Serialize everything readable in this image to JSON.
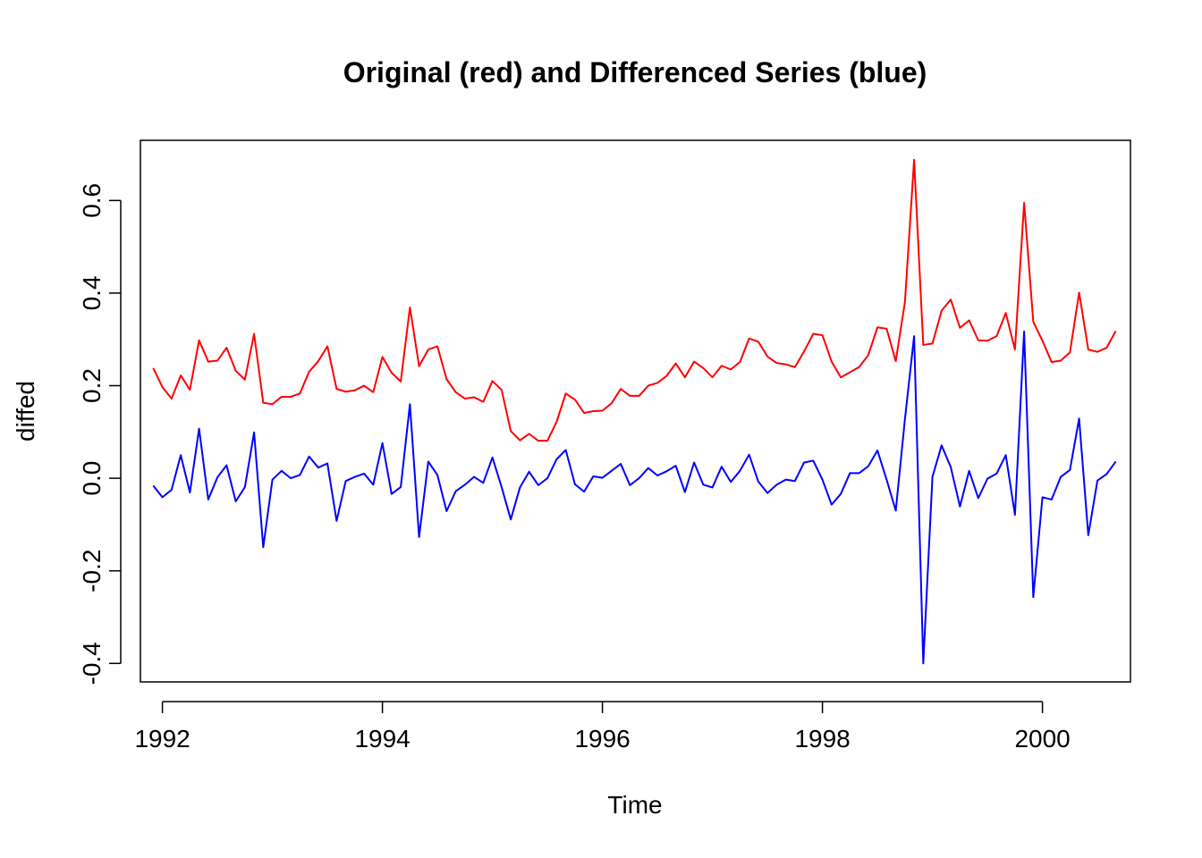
{
  "chart_data": {
    "type": "line",
    "title": "Original (red) and Differenced Series (blue)",
    "xlabel": "Time",
    "ylabel": "diffed",
    "xlim": [
      1991.8,
      2000.8
    ],
    "ylim": [
      -0.44,
      0.73
    ],
    "x_ticks": [
      1992,
      1994,
      1996,
      1998,
      2000
    ],
    "x_tick_labels": [
      "1992",
      "1994",
      "1996",
      "1998",
      "2000"
    ],
    "y_ticks": [
      -0.4,
      -0.2,
      0.0,
      0.2,
      0.4,
      0.6
    ],
    "y_tick_labels": [
      "-0.4",
      "-0.2",
      "0.0",
      "0.2",
      "0.4",
      "0.6"
    ],
    "grid": false,
    "legend": "none",
    "x_start": 1991.9167,
    "x_step": 0.0833333,
    "series": [
      {
        "color": "#ff0000",
        "values": [
          0.238,
          0.197,
          0.172,
          0.222,
          0.191,
          0.298,
          0.252,
          0.254,
          0.282,
          0.232,
          0.213,
          0.312,
          0.163,
          0.16,
          0.176,
          0.176,
          0.183,
          0.23,
          0.253,
          0.285,
          0.193,
          0.187,
          0.19,
          0.2,
          0.186,
          0.262,
          0.228,
          0.209,
          0.369,
          0.242,
          0.278,
          0.285,
          0.214,
          0.186,
          0.172,
          0.175,
          0.165,
          0.21,
          0.191,
          0.102,
          0.082,
          0.096,
          0.081,
          0.081,
          0.122,
          0.183,
          0.17,
          0.141,
          0.145,
          0.146,
          0.162,
          0.193,
          0.178,
          0.178,
          0.2,
          0.206,
          0.221,
          0.248,
          0.218,
          0.252,
          0.238,
          0.218,
          0.243,
          0.235,
          0.251,
          0.302,
          0.295,
          0.263,
          0.249,
          0.246,
          0.24,
          0.274,
          0.312,
          0.309,
          0.252,
          0.218,
          0.229,
          0.24,
          0.266,
          0.326,
          0.323,
          0.253,
          0.381,
          0.688,
          0.288,
          0.291,
          0.362,
          0.386,
          0.325,
          0.341,
          0.298,
          0.297,
          0.307,
          0.357,
          0.278,
          0.595,
          0.338,
          0.297,
          0.251,
          0.254,
          0.272,
          0.401,
          0.278,
          0.273,
          0.282,
          0.318
        ]
      },
      {
        "color": "#0000ff",
        "values": [
          -0.016,
          -0.041,
          -0.025,
          0.05,
          -0.031,
          0.107,
          -0.046,
          0.002,
          0.028,
          -0.05,
          -0.019,
          0.099,
          -0.149,
          -0.003,
          0.016,
          0.0,
          0.007,
          0.047,
          0.023,
          0.032,
          -0.092,
          -0.006,
          0.003,
          0.01,
          -0.014,
          0.076,
          -0.034,
          -0.019,
          0.16,
          -0.127,
          0.036,
          0.007,
          -0.071,
          -0.028,
          -0.014,
          0.003,
          -0.01,
          0.045,
          -0.019,
          -0.089,
          -0.02,
          0.014,
          -0.015,
          0.0,
          0.041,
          0.061,
          -0.013,
          -0.029,
          0.004,
          0.001,
          0.016,
          0.031,
          -0.015,
          0.0,
          0.022,
          0.006,
          0.015,
          0.027,
          -0.03,
          0.034,
          -0.014,
          -0.02,
          0.025,
          -0.008,
          0.016,
          0.051,
          -0.007,
          -0.032,
          -0.014,
          -0.003,
          -0.006,
          0.034,
          0.038,
          -0.003,
          -0.057,
          -0.034,
          0.011,
          0.011,
          0.026,
          0.06,
          -0.003,
          -0.07,
          0.128,
          0.307,
          -0.4,
          0.003,
          0.071,
          0.024,
          -0.061,
          0.016,
          -0.043,
          -0.001,
          0.01,
          0.05,
          -0.079,
          0.317,
          -0.257,
          -0.041,
          -0.046,
          0.003,
          0.018,
          0.129,
          -0.123,
          -0.005,
          0.009,
          0.036
        ]
      }
    ]
  }
}
